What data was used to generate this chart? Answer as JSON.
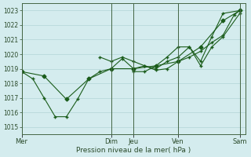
{
  "title": "",
  "xlabel": "Pression niveau de la mer( hPa )",
  "ylabel": "",
  "background_color": "#d4ecee",
  "grid_color": "#b8d8da",
  "line_color": "#1a5c1a",
  "ylim": [
    1014.5,
    1023.5
  ],
  "yticks": [
    1015,
    1016,
    1017,
    1018,
    1019,
    1020,
    1021,
    1022,
    1023
  ],
  "xlim": [
    0,
    240
  ],
  "x_tick_positions": [
    0,
    96,
    120,
    168,
    234
  ],
  "x_tick_labels": [
    "Mer",
    "Dim",
    "Jeu",
    "Ven",
    "Sam"
  ],
  "vlines": [
    0,
    96,
    120,
    168,
    234
  ],
  "lines": [
    {
      "x": [
        0,
        12,
        24,
        36,
        48,
        60,
        72,
        84,
        96,
        108,
        120,
        132,
        144,
        156,
        168,
        180,
        192,
        204,
        216,
        228,
        234
      ],
      "y": [
        1018.8,
        1018.3,
        1017.0,
        1015.7,
        1015.7,
        1016.9,
        1018.3,
        1018.8,
        1019.0,
        1019.7,
        1019.0,
        1019.2,
        1018.9,
        1019.0,
        1019.5,
        1019.8,
        1020.2,
        1020.8,
        1021.3,
        1022.7,
        1023.0
      ],
      "marker": "+"
    },
    {
      "x": [
        0,
        24,
        48,
        72,
        96,
        120,
        144,
        168,
        192,
        216,
        234
      ],
      "y": [
        1018.8,
        1018.5,
        1016.9,
        1018.3,
        1019.0,
        1019.0,
        1019.2,
        1019.5,
        1020.5,
        1022.3,
        1023.0
      ],
      "marker": "D"
    },
    {
      "x": [
        84,
        96,
        108,
        120,
        132,
        144,
        156,
        168,
        180,
        192,
        204,
        216,
        234
      ],
      "y": [
        1019.8,
        1019.5,
        1019.8,
        1019.5,
        1019.2,
        1019.0,
        1019.5,
        1019.8,
        1020.5,
        1019.5,
        1021.2,
        1022.8,
        1023.0
      ],
      "marker": "+"
    },
    {
      "x": [
        120,
        132,
        144,
        156,
        168,
        180,
        192,
        204,
        216,
        234
      ],
      "y": [
        1018.8,
        1018.8,
        1019.2,
        1019.8,
        1020.5,
        1020.5,
        1019.2,
        1020.5,
        1021.2,
        1022.8
      ],
      "marker": "+"
    }
  ]
}
